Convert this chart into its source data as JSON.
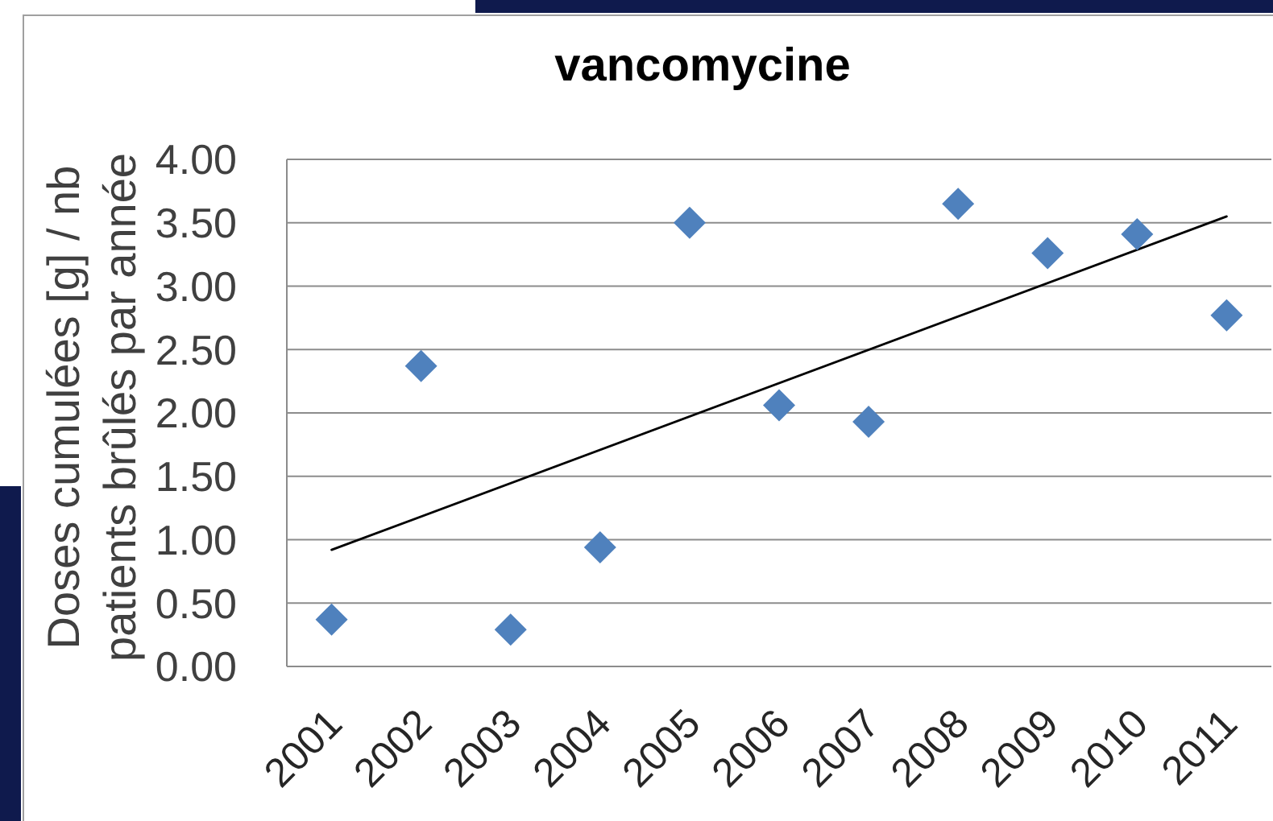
{
  "chart_data": {
    "type": "scatter",
    "title": "vancomycine",
    "ylabel": "Doses cumulées [g] / nb patients brûlés par année",
    "x": [
      2001,
      2002,
      2003,
      2004,
      2005,
      2006,
      2007,
      2008,
      2009,
      2010,
      2011
    ],
    "series": [
      {
        "color": "#4f81bd",
        "marker": "diamond",
        "values": [
          0.37,
          2.37,
          0.29,
          0.94,
          3.5,
          2.06,
          1.93,
          3.65,
          3.26,
          3.41,
          2.77
        ]
      },
      {
        "type": "line",
        "color": "#000000",
        "line_style": "solid",
        "x": [
          2001,
          2011
        ],
        "values": [
          0.92,
          3.55
        ]
      }
    ],
    "xlim": [
      2000.5,
      2011.5
    ],
    "xticks": [
      2001,
      2002,
      2003,
      2004,
      2005,
      2006,
      2007,
      2008,
      2009,
      2010,
      2011
    ],
    "ylim": [
      0,
      4
    ],
    "yticks": [
      {
        "value": 0,
        "label": "0.00"
      },
      {
        "value": 0.5,
        "label": "0.50"
      },
      {
        "value": 1,
        "label": "1.00"
      },
      {
        "value": 1.5,
        "label": "1.50"
      },
      {
        "value": 2,
        "label": "2.00"
      },
      {
        "value": 2.5,
        "label": "2.50"
      },
      {
        "value": 3,
        "label": "3.00"
      },
      {
        "value": 3.5,
        "label": "3.50"
      },
      {
        "value": 4,
        "label": "4.00"
      }
    ],
    "grid": "y"
  }
}
